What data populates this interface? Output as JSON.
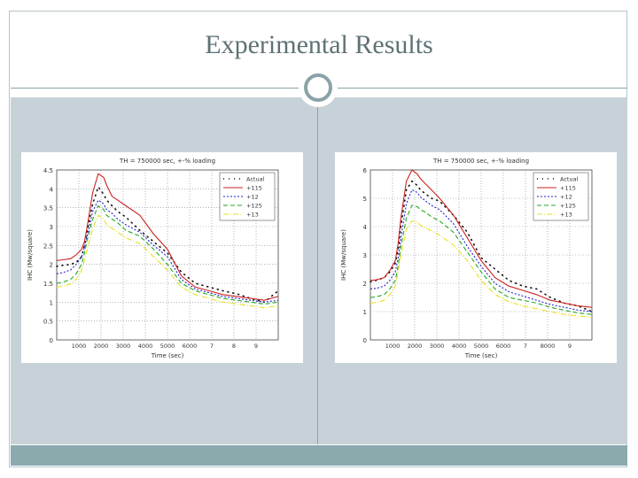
{
  "slide": {
    "title": "Experimental Results"
  },
  "colors": {
    "actual": "#111111",
    "s115": "#cc2222",
    "s12": "#2222cc",
    "s125": "#22aa22",
    "s13": "#e8e020"
  },
  "chart_data": [
    {
      "type": "line",
      "title": "TH = 750000 sec, +-% loading",
      "xlabel": "Time (sec)",
      "ylabel": "IHC (Mw/square)",
      "ylim": [
        0,
        4.5
      ],
      "yticks": [
        "4.5",
        "4",
        "3.5",
        "3",
        "2.5",
        "2",
        "1.5",
        "1",
        "0.5",
        "0"
      ],
      "xticks": [
        "1000",
        "2000",
        "3000",
        "4000",
        "5000",
        "6000",
        "7",
        "8",
        "9"
      ],
      "x": [
        1000,
        1200,
        1500,
        1700,
        1900,
        2000,
        2100,
        2300,
        2500,
        2700,
        2800,
        3000,
        3200,
        3500,
        4000,
        4500,
        5000,
        5500,
        6000,
        6500,
        7000,
        7500,
        8000,
        8500,
        9000
      ],
      "series": [
        {
          "name": "Actual",
          "values": [
            1.95,
            1.97,
            2.0,
            2.05,
            2.2,
            2.5,
            2.9,
            3.6,
            4.05,
            3.85,
            3.7,
            3.55,
            3.4,
            3.25,
            2.9,
            2.6,
            2.3,
            1.8,
            1.5,
            1.4,
            1.3,
            1.22,
            1.1,
            1.0,
            1.3
          ]
        },
        {
          "name": "+115",
          "values": [
            2.1,
            2.12,
            2.15,
            2.25,
            2.4,
            2.6,
            3.0,
            3.9,
            4.4,
            4.3,
            4.1,
            3.8,
            3.7,
            3.55,
            3.3,
            2.8,
            2.4,
            1.7,
            1.4,
            1.3,
            1.2,
            1.15,
            1.1,
            1.05,
            1.15
          ]
        },
        {
          "name": "+12",
          "values": [
            1.75,
            1.78,
            1.85,
            2.0,
            2.2,
            2.45,
            2.75,
            3.4,
            3.7,
            3.6,
            3.45,
            3.35,
            3.2,
            3.05,
            2.85,
            2.5,
            2.2,
            1.6,
            1.35,
            1.25,
            1.15,
            1.1,
            1.05,
            1.0,
            1.05
          ]
        },
        {
          "name": "+125",
          "values": [
            1.5,
            1.52,
            1.6,
            1.75,
            2.0,
            2.3,
            2.65,
            3.2,
            3.55,
            3.45,
            3.3,
            3.2,
            3.1,
            2.9,
            2.75,
            2.4,
            2.0,
            1.5,
            1.3,
            1.2,
            1.1,
            1.05,
            1.0,
            0.95,
            1.0
          ]
        },
        {
          "name": "+13",
          "values": [
            1.4,
            1.42,
            1.48,
            1.6,
            1.85,
            2.1,
            2.4,
            2.95,
            3.3,
            3.2,
            3.05,
            2.95,
            2.85,
            2.7,
            2.55,
            2.2,
            1.85,
            1.4,
            1.2,
            1.1,
            1.0,
            0.95,
            0.9,
            0.85,
            0.9
          ]
        }
      ],
      "legend": "top-right",
      "grid": true
    },
    {
      "type": "line",
      "title": "TH = 750000 sec, +-% loading",
      "xlabel": "Time (sec)",
      "ylabel": "IHC (Mw/square)",
      "ylim": [
        0,
        6
      ],
      "yticks": [
        "6",
        "5",
        "4",
        "3",
        "2",
        "1",
        "0"
      ],
      "xticks": [
        "1000",
        "2000",
        "3000",
        "4000",
        "5000",
        "6000",
        "7",
        "8000",
        "9"
      ],
      "x": [
        1000,
        1200,
        1500,
        1700,
        1900,
        2000,
        2100,
        2300,
        2500,
        2700,
        2800,
        3000,
        3200,
        3500,
        4000,
        4500,
        5000,
        5500,
        6000,
        6500,
        7000,
        7500,
        8000,
        8500,
        9000
      ],
      "series": [
        {
          "name": "Actual",
          "values": [
            2.05,
            2.1,
            2.2,
            2.4,
            2.7,
            3.2,
            4.0,
            5.3,
            5.6,
            5.45,
            5.3,
            5.15,
            5.0,
            4.9,
            4.4,
            3.8,
            2.9,
            2.5,
            2.1,
            1.9,
            1.8,
            1.5,
            1.3,
            1.2,
            1.0
          ]
        },
        {
          "name": "+115",
          "values": [
            2.1,
            2.12,
            2.2,
            2.45,
            2.8,
            3.4,
            4.3,
            5.6,
            6.0,
            5.85,
            5.7,
            5.5,
            5.3,
            5.0,
            4.4,
            3.6,
            2.8,
            2.2,
            1.9,
            1.75,
            1.6,
            1.4,
            1.3,
            1.2,
            1.15
          ]
        },
        {
          "name": "+12",
          "values": [
            1.8,
            1.82,
            1.9,
            2.1,
            2.4,
            2.9,
            3.6,
            4.8,
            5.3,
            5.2,
            5.05,
            4.9,
            4.75,
            4.6,
            4.1,
            3.3,
            2.6,
            2.0,
            1.7,
            1.55,
            1.4,
            1.25,
            1.15,
            1.05,
            1.0
          ]
        },
        {
          "name": "+125",
          "values": [
            1.5,
            1.52,
            1.6,
            1.8,
            2.1,
            2.6,
            3.3,
            4.3,
            4.75,
            4.7,
            4.6,
            4.5,
            4.35,
            4.2,
            3.8,
            3.1,
            2.4,
            1.8,
            1.5,
            1.4,
            1.3,
            1.15,
            1.05,
            0.95,
            0.9
          ]
        },
        {
          "name": "+13",
          "values": [
            1.3,
            1.32,
            1.4,
            1.6,
            1.9,
            2.4,
            3.0,
            3.9,
            4.2,
            4.15,
            4.05,
            3.95,
            3.85,
            3.7,
            3.35,
            2.8,
            2.1,
            1.6,
            1.35,
            1.2,
            1.1,
            1.0,
            0.9,
            0.85,
            0.8
          ]
        }
      ],
      "legend": "top-right",
      "grid": true
    }
  ]
}
